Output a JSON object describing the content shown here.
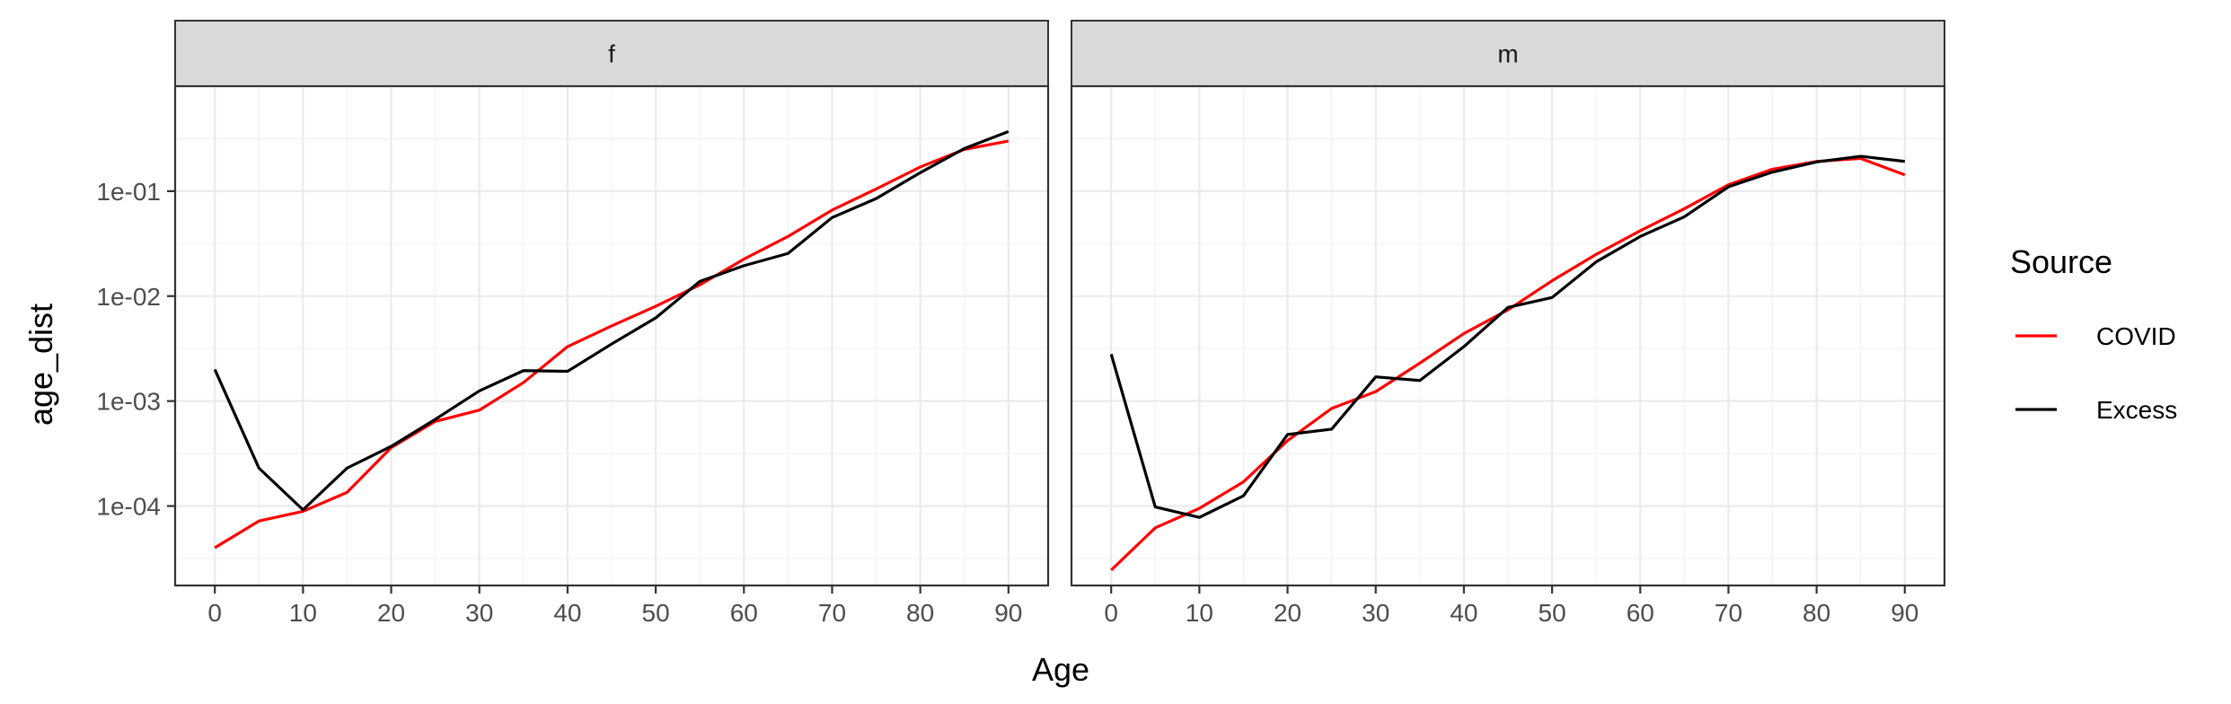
{
  "chart_data": {
    "type": "line",
    "xlabel": "Age",
    "ylabel": "age_dist",
    "x_scale": "linear",
    "y_scale": "log10",
    "xlim": [
      -4.5,
      94.5
    ],
    "ylim": [
      1.75e-05,
      1.0
    ],
    "x_ticks": [
      0,
      10,
      20,
      30,
      40,
      50,
      60,
      70,
      80,
      90
    ],
    "y_ticks": [
      0.0001,
      0.001,
      0.01,
      0.1
    ],
    "y_tick_labels": [
      "1e-04",
      "1e-03",
      "1e-02",
      "1e-01"
    ],
    "grid": true,
    "legend": {
      "title": "Source",
      "position": "right",
      "entries": [
        "COVID",
        "Excess"
      ]
    },
    "colors": {
      "COVID": "#FF0000",
      "Excess": "#000000"
    },
    "x": [
      0,
      5,
      10,
      15,
      20,
      25,
      30,
      35,
      40,
      45,
      50,
      55,
      60,
      65,
      70,
      75,
      80,
      85,
      90
    ],
    "panels": [
      {
        "facet": "f",
        "series": [
          {
            "name": "COVID",
            "values": [
              4e-05,
              7.2e-05,
              8.9e-05,
              0.000135,
              0.00036,
              0.00064,
              0.00082,
              0.0015,
              0.0033,
              0.0052,
              0.008,
              0.0128,
              0.0225,
              0.037,
              0.066,
              0.105,
              0.17,
              0.25,
              0.3
            ]
          },
          {
            "name": "Excess",
            "values": [
              0.002,
              0.00023,
              9.2e-05,
              0.00023,
              0.00037,
              0.00067,
              0.00125,
              0.00195,
              0.00192,
              0.0035,
              0.0062,
              0.0138,
              0.0195,
              0.0255,
              0.056,
              0.085,
              0.15,
              0.255,
              0.37
            ]
          }
        ]
      },
      {
        "facet": "m",
        "series": [
          {
            "name": "COVID",
            "values": [
              2.45e-05,
              6.2e-05,
              9.5e-05,
              0.00017,
              0.00042,
              0.00085,
              0.00123,
              0.0023,
              0.0044,
              0.0074,
              0.014,
              0.025,
              0.042,
              0.068,
              0.115,
              0.162,
              0.192,
              0.205,
              0.143
            ]
          },
          {
            "name": "Excess",
            "values": [
              0.0028,
              9.8e-05,
              7.8e-05,
              0.000125,
              0.00048,
              0.00054,
              0.0017,
              0.00157,
              0.0033,
              0.0078,
              0.0097,
              0.0212,
              0.037,
              0.057,
              0.11,
              0.152,
              0.19,
              0.215,
              0.192
            ]
          }
        ]
      }
    ]
  }
}
